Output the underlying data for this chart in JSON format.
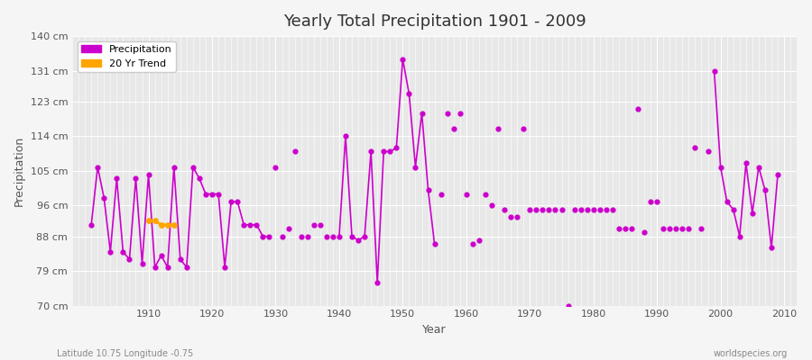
{
  "title": "Yearly Total Precipitation 1901 - 2009",
  "xlabel": "Year",
  "ylabel": "Precipitation",
  "subtitle_left": "Latitude 10.75 Longitude -0.75",
  "subtitle_right": "worldspecies.org",
  "ylim": [
    70,
    140
  ],
  "yticks": [
    70,
    79,
    88,
    96,
    105,
    114,
    123,
    131,
    140
  ],
  "ytick_labels": [
    "70 cm",
    "79 cm",
    "88 cm",
    "96 cm",
    "105 cm",
    "114 cm",
    "123 cm",
    "131 cm",
    "140 cm"
  ],
  "line_color": "#cc00cc",
  "trend_color": "#ffa500",
  "years": [
    1901,
    1902,
    1903,
    1904,
    1905,
    1906,
    1907,
    1908,
    1909,
    1910,
    1911,
    1912,
    1913,
    1914,
    1915,
    1916,
    1917,
    1918,
    1919,
    1920,
    1921,
    1922,
    1923,
    1924,
    1925,
    1926,
    1927,
    1928,
    1929,
    1930,
    1931,
    1932,
    1933,
    1934,
    1935,
    1936,
    1937,
    1938,
    1939,
    1940,
    1941,
    1942,
    1943,
    1944,
    1945,
    1946,
    1947,
    1948,
    1949,
    1950,
    1951,
    1952,
    1953,
    1954,
    1955,
    1956,
    1957,
    1958,
    1959,
    1960,
    1961,
    1962,
    1963,
    1964,
    1965,
    1966,
    1967,
    1968,
    1969,
    1970,
    1971,
    1972,
    1973,
    1974,
    1975,
    1976,
    1977,
    1978,
    1979,
    1980,
    1981,
    1982,
    1983,
    1984,
    1985,
    1986,
    1987,
    1988,
    1989,
    1990,
    1991,
    1992,
    1993,
    1994,
    1995,
    1996,
    1997,
    1998,
    1999,
    2000,
    2001,
    2002,
    2003,
    2004,
    2005,
    2006,
    2007,
    2008,
    2009
  ],
  "precip": [
    91,
    106,
    98,
    84,
    103,
    84,
    82,
    103,
    81,
    104,
    80,
    83,
    80,
    106,
    82,
    80,
    106,
    103,
    99,
    99,
    99,
    80,
    97,
    97,
    91,
    91,
    91,
    88,
    88,
    106,
    88,
    90,
    110,
    88,
    88,
    91,
    91,
    88,
    88,
    88,
    114,
    88,
    87,
    88,
    110,
    76,
    110,
    110,
    111,
    134,
    125,
    106,
    120,
    100,
    86,
    99,
    120,
    116,
    120,
    99,
    86,
    87,
    99,
    96,
    116,
    95,
    93,
    93,
    116,
    95,
    95,
    95,
    95,
    95,
    95,
    70,
    95,
    95,
    95,
    95,
    95,
    95,
    95,
    90,
    90,
    90,
    121,
    89,
    97,
    97,
    90,
    90,
    90,
    90,
    90,
    111,
    90,
    110,
    131,
    106,
    97,
    95,
    88,
    107,
    94,
    106,
    100,
    85,
    104
  ],
  "trend_years": [
    1910,
    1911,
    1912,
    1913,
    1914
  ],
  "trend_values": [
    92,
    92,
    91,
    91,
    91
  ],
  "connected_segments": [
    [
      1901,
      1902,
      1903,
      1904,
      1905,
      1906,
      1907,
      1908,
      1909,
      1910,
      1911,
      1912,
      1913,
      1914,
      1915,
      1916,
      1917,
      1918,
      1919,
      1920,
      1921,
      1922,
      1923,
      1924,
      1925,
      1926,
      1927,
      1928,
      1929
    ],
    [
      1940,
      1941,
      1942,
      1943,
      1944,
      1945,
      1946,
      1947,
      1948,
      1949,
      1950,
      1951,
      1952,
      1953,
      1954,
      1955
    ],
    [
      1999,
      2000,
      2001,
      2002,
      2003,
      2004,
      2005,
      2006,
      2007,
      2008,
      2009
    ]
  ]
}
